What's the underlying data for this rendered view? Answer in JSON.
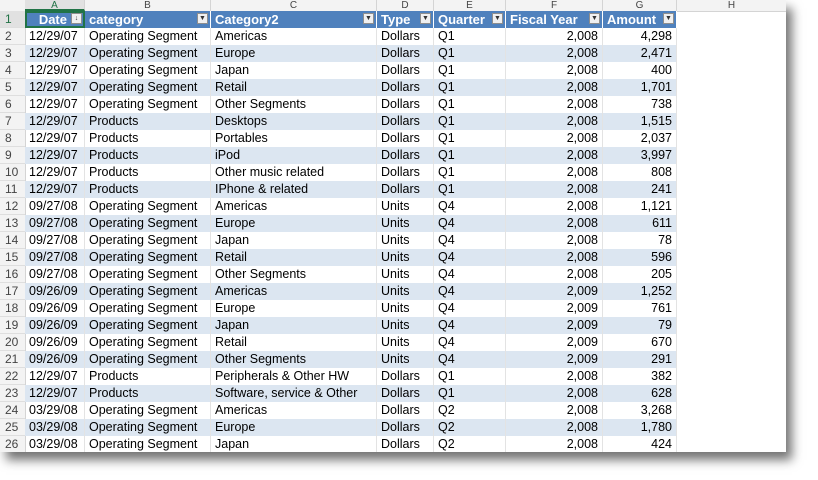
{
  "columns": [
    "A",
    "B",
    "C",
    "D",
    "E",
    "F",
    "G",
    "H"
  ],
  "table": {
    "headers": [
      "Date",
      "category",
      "Category2",
      "Type",
      "Quarter",
      "Fiscal Year",
      "Amount"
    ],
    "rows": [
      [
        "12/29/07",
        "Operating Segment",
        "Americas",
        "Dollars",
        "Q1",
        "2,008",
        "4,298"
      ],
      [
        "12/29/07",
        "Operating Segment",
        "Europe",
        "Dollars",
        "Q1",
        "2,008",
        "2,471"
      ],
      [
        "12/29/07",
        "Operating Segment",
        "Japan",
        "Dollars",
        "Q1",
        "2,008",
        "400"
      ],
      [
        "12/29/07",
        "Operating Segment",
        "Retail",
        "Dollars",
        "Q1",
        "2,008",
        "1,701"
      ],
      [
        "12/29/07",
        "Operating Segment",
        "Other Segments",
        "Dollars",
        "Q1",
        "2,008",
        "738"
      ],
      [
        "12/29/07",
        "Products",
        "Desktops",
        "Dollars",
        "Q1",
        "2,008",
        "1,515"
      ],
      [
        "12/29/07",
        "Products",
        "Portables",
        "Dollars",
        "Q1",
        "2,008",
        "2,037"
      ],
      [
        "12/29/07",
        "Products",
        "iPod",
        "Dollars",
        "Q1",
        "2,008",
        "3,997"
      ],
      [
        "12/29/07",
        "Products",
        "Other music related",
        "Dollars",
        "Q1",
        "2,008",
        "808"
      ],
      [
        "12/29/07",
        "Products",
        "IPhone & related",
        "Dollars",
        "Q1",
        "2,008",
        "241"
      ],
      [
        "09/27/08",
        "Operating Segment",
        "Americas",
        "Units",
        "Q4",
        "2,008",
        "1,121"
      ],
      [
        "09/27/08",
        "Operating Segment",
        "Europe",
        "Units",
        "Q4",
        "2,008",
        "611"
      ],
      [
        "09/27/08",
        "Operating Segment",
        "Japan",
        "Units",
        "Q4",
        "2,008",
        "78"
      ],
      [
        "09/27/08",
        "Operating Segment",
        "Retail",
        "Units",
        "Q4",
        "2,008",
        "596"
      ],
      [
        "09/27/08",
        "Operating Segment",
        "Other Segments",
        "Units",
        "Q4",
        "2,008",
        "205"
      ],
      [
        "09/26/09",
        "Operating Segment",
        "Americas",
        "Units",
        "Q4",
        "2,009",
        "1,252"
      ],
      [
        "09/26/09",
        "Operating Segment",
        "Europe",
        "Units",
        "Q4",
        "2,009",
        "761"
      ],
      [
        "09/26/09",
        "Operating Segment",
        "Japan",
        "Units",
        "Q4",
        "2,009",
        "79"
      ],
      [
        "09/26/09",
        "Operating Segment",
        "Retail",
        "Units",
        "Q4",
        "2,009",
        "670"
      ],
      [
        "09/26/09",
        "Operating Segment",
        "Other Segments",
        "Units",
        "Q4",
        "2,009",
        "291"
      ],
      [
        "12/29/07",
        "Products",
        "Peripherals & Other HW",
        "Dollars",
        "Q1",
        "2,008",
        "382"
      ],
      [
        "12/29/07",
        "Products",
        "Software, service & Other",
        "Dollars",
        "Q1",
        "2,008",
        "628"
      ],
      [
        "03/29/08",
        "Operating Segment",
        "Americas",
        "Dollars",
        "Q2",
        "2,008",
        "3,268"
      ],
      [
        "03/29/08",
        "Operating Segment",
        "Europe",
        "Dollars",
        "Q2",
        "2,008",
        "1,780"
      ],
      [
        "03/29/08",
        "Operating Segment",
        "Japan",
        "Dollars",
        "Q2",
        "2,008",
        "424"
      ]
    ]
  },
  "colors": {
    "header_fill": "#4f81bd",
    "band_fill": "#dce6f1",
    "selection": "#217346"
  },
  "icons": {
    "filter": "filter-dropdown-icon"
  }
}
